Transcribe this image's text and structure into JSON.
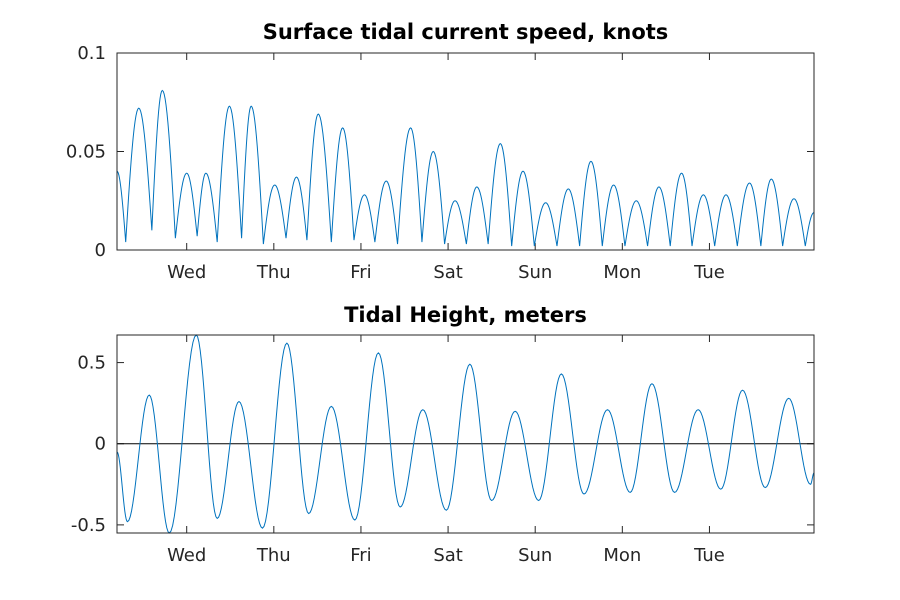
{
  "colors": {
    "series": "#0072bd",
    "axes": "#262626",
    "zero_line": "#000000"
  },
  "chart_data": [
    {
      "type": "line",
      "title": "Surface tidal current speed, knots",
      "xlabel": "",
      "ylabel": "",
      "x_axis": "days (Tue 00:00 = 0)",
      "xlim": [
        0.7,
        8.7
      ],
      "ylim": [
        0,
        0.1
      ],
      "yticks": [
        0,
        0.05,
        0.1
      ],
      "ytick_labels": [
        "0",
        "0.05",
        "0.1"
      ],
      "xticks": [
        1.5,
        2.5,
        3.5,
        4.5,
        5.5,
        6.5,
        7.5
      ],
      "xtick_labels": [
        "Wed",
        "Thu",
        "Fri",
        "Sat",
        "Sun",
        "Mon",
        "Tue"
      ],
      "grid": false,
      "series": [
        {
          "peaks": [
            [
              0.7,
              0.04
            ],
            [
              0.95,
              0.072
            ],
            [
              1.22,
              0.081
            ],
            [
              1.5,
              0.039
            ],
            [
              1.72,
              0.039
            ],
            [
              1.99,
              0.073
            ],
            [
              2.24,
              0.073
            ],
            [
              2.51,
              0.033
            ],
            [
              2.76,
              0.037
            ],
            [
              3.01,
              0.069
            ],
            [
              3.29,
              0.062
            ],
            [
              3.54,
              0.028
            ],
            [
              3.79,
              0.035
            ],
            [
              4.07,
              0.062
            ],
            [
              4.33,
              0.05
            ],
            [
              4.58,
              0.025
            ],
            [
              4.83,
              0.032
            ],
            [
              5.1,
              0.054
            ],
            [
              5.36,
              0.04
            ],
            [
              5.62,
              0.024
            ],
            [
              5.88,
              0.031
            ],
            [
              6.14,
              0.045
            ],
            [
              6.4,
              0.033
            ],
            [
              6.66,
              0.025
            ],
            [
              6.92,
              0.032
            ],
            [
              7.18,
              0.039
            ],
            [
              7.43,
              0.028
            ],
            [
              7.69,
              0.028
            ],
            [
              7.96,
              0.034
            ],
            [
              8.21,
              0.036
            ],
            [
              8.47,
              0.026
            ],
            [
              8.7,
              0.019
            ]
          ],
          "troughs": [
            [
              0.8,
              0.004
            ],
            [
              1.1,
              0.01
            ],
            [
              1.37,
              0.006
            ],
            [
              1.62,
              0.007
            ],
            [
              1.85,
              0.004
            ],
            [
              2.13,
              0.006
            ],
            [
              2.38,
              0.003
            ],
            [
              2.64,
              0.006
            ],
            [
              2.88,
              0.005
            ],
            [
              3.16,
              0.004
            ],
            [
              3.42,
              0.005
            ],
            [
              3.66,
              0.004
            ],
            [
              3.92,
              0.003
            ],
            [
              4.2,
              0.004
            ],
            [
              4.46,
              0.003
            ],
            [
              4.71,
              0.003
            ],
            [
              4.96,
              0.003
            ],
            [
              5.23,
              0.002
            ],
            [
              5.49,
              0.002
            ],
            [
              5.75,
              0.002
            ],
            [
              6.01,
              0.002
            ],
            [
              6.27,
              0.002
            ],
            [
              6.53,
              0.002
            ],
            [
              6.79,
              0.002
            ],
            [
              7.05,
              0.002
            ],
            [
              7.3,
              0.002
            ],
            [
              7.56,
              0.002
            ],
            [
              7.82,
              0.002
            ],
            [
              8.09,
              0.002
            ],
            [
              8.34,
              0.002
            ],
            [
              8.6,
              0.002
            ]
          ]
        }
      ]
    },
    {
      "type": "line",
      "title": "Tidal Height, meters",
      "xlabel": "",
      "ylabel": "",
      "x_axis": "days (Tue 00:00 = 0)",
      "xlim": [
        0.7,
        8.7
      ],
      "ylim": [
        -0.55,
        0.67
      ],
      "yticks": [
        -0.5,
        0,
        0.5
      ],
      "ytick_labels": [
        "-0.5",
        "0",
        "0.5"
      ],
      "xticks": [
        1.5,
        2.5,
        3.5,
        4.5,
        5.5,
        6.5,
        7.5
      ],
      "xtick_labels": [
        "Wed",
        "Thu",
        "Fri",
        "Sat",
        "Sun",
        "Mon",
        "Tue"
      ],
      "grid": false,
      "zero_line": true,
      "series": [
        {
          "extrema": [
            [
              0.7,
              -0.05
            ],
            [
              0.82,
              -0.48
            ],
            [
              1.07,
              0.3
            ],
            [
              1.3,
              -0.55
            ],
            [
              1.61,
              0.67
            ],
            [
              1.85,
              -0.46
            ],
            [
              2.1,
              0.26
            ],
            [
              2.37,
              -0.52
            ],
            [
              2.65,
              0.62
            ],
            [
              2.9,
              -0.43
            ],
            [
              3.16,
              0.23
            ],
            [
              3.43,
              -0.47
            ],
            [
              3.7,
              0.56
            ],
            [
              3.95,
              -0.39
            ],
            [
              4.21,
              0.21
            ],
            [
              4.48,
              -0.41
            ],
            [
              4.75,
              0.49
            ],
            [
              5.0,
              -0.35
            ],
            [
              5.27,
              0.2
            ],
            [
              5.54,
              -0.35
            ],
            [
              5.8,
              0.43
            ],
            [
              6.06,
              -0.31
            ],
            [
              6.33,
              0.21
            ],
            [
              6.59,
              -0.3
            ],
            [
              6.84,
              0.37
            ],
            [
              7.1,
              -0.3
            ],
            [
              7.37,
              0.21
            ],
            [
              7.63,
              -0.28
            ],
            [
              7.88,
              0.33
            ],
            [
              8.14,
              -0.27
            ],
            [
              8.41,
              0.28
            ],
            [
              8.66,
              -0.25
            ],
            [
              8.7,
              -0.18
            ]
          ]
        }
      ]
    }
  ]
}
